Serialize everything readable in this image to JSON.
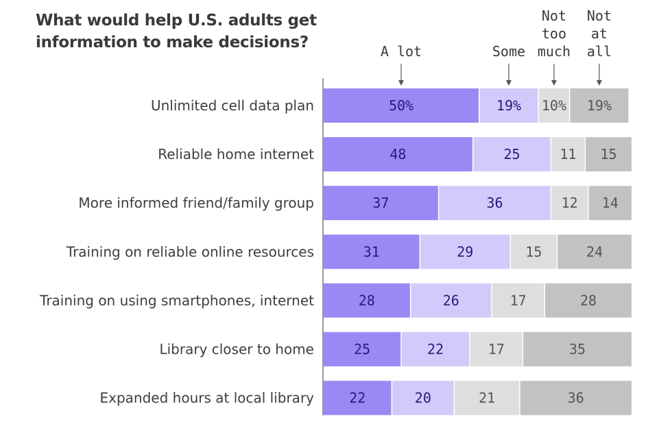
{
  "title_lines": [
    "What would help U.S. adults get",
    "information to make decisions?"
  ],
  "chart_data": {
    "type": "bar",
    "orientation": "horizontal",
    "stacked": true,
    "title": "What would help U.S. adults get information to make decisions?",
    "categories": [
      "Unlimited cell data plan",
      "Reliable home internet",
      "More informed friend/family group",
      "Training on reliable online resources",
      "Training on using smartphones, internet",
      "Library closer to home",
      "Expanded hours at local library"
    ],
    "series": [
      {
        "name": "A lot",
        "legend_lines": [
          "A lot"
        ],
        "color": "#9b88f5",
        "text_color": "#2a1a7a",
        "values": [
          50,
          48,
          37,
          31,
          28,
          25,
          22
        ]
      },
      {
        "name": "Some",
        "legend_lines": [
          "Some"
        ],
        "color": "#d1cbfb",
        "text_color": "#2a1a7a",
        "values": [
          19,
          25,
          36,
          29,
          26,
          22,
          20
        ]
      },
      {
        "name": "Not too much",
        "legend_lines": [
          "Not",
          "too",
          "much"
        ],
        "color": "#dedede",
        "text_color": "#555555",
        "values": [
          10,
          11,
          12,
          15,
          17,
          17,
          21
        ]
      },
      {
        "name": "Not at all",
        "legend_lines": [
          "Not",
          "at",
          "all"
        ],
        "color": "#c2c2c2",
        "text_color": "#555555",
        "values": [
          19,
          15,
          14,
          24,
          28,
          35,
          36
        ]
      }
    ],
    "value_labels": [
      [
        "50%",
        "19%",
        "10%",
        "19%"
      ],
      [
        "48",
        "25",
        "11",
        "15"
      ],
      [
        "37",
        "36",
        "12",
        "14"
      ],
      [
        "31",
        "29",
        "15",
        "24"
      ],
      [
        "28",
        "26",
        "17",
        "28"
      ],
      [
        "25",
        "22",
        "17",
        "35"
      ],
      [
        "22",
        "20",
        "21",
        "36"
      ]
    ],
    "legend_position": "top",
    "grid": false
  }
}
